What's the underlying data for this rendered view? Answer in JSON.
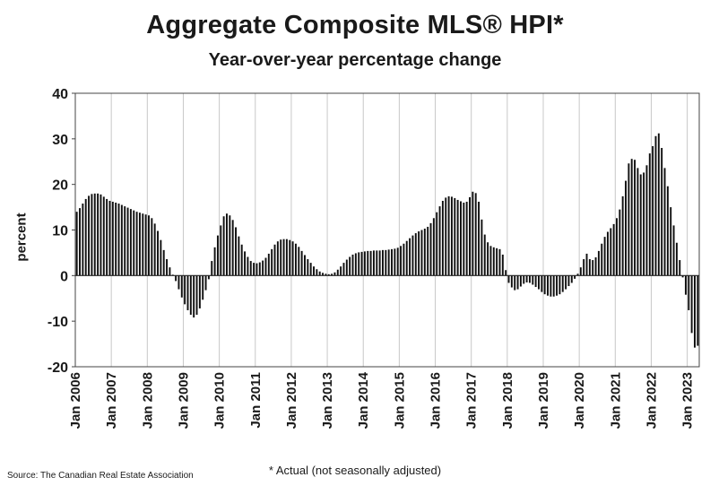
{
  "chart_data": {
    "type": "bar",
    "title": "Aggregate Composite MLS® HPI*",
    "subtitle": "Year-over-year percentage change",
    "xlabel": "",
    "ylabel": "percent",
    "ylim": [
      -20,
      40
    ],
    "yticks": [
      40,
      30,
      20,
      10,
      0,
      -10,
      -20
    ],
    "grid": "vertical",
    "x_tick_labels": [
      "Jan 2006",
      "Jan 2007",
      "Jan 2008",
      "Jan 2009",
      "Jan 2010",
      "Jan 2011",
      "Jan 2012",
      "Jan 2013",
      "Jan 2014",
      "Jan 2015",
      "Jan 2016",
      "Jan 2017",
      "Jan 2018",
      "Jan 2019",
      "Jan 2020",
      "Jan 2021",
      "Jan 2022",
      "Jan 2023"
    ],
    "start": "Jan 2006",
    "frequency": "monthly",
    "color": "#111111",
    "values": [
      14.0,
      14.8,
      15.8,
      16.8,
      17.5,
      17.9,
      18.0,
      18.0,
      17.8,
      17.3,
      16.8,
      16.4,
      16.2,
      16.0,
      15.8,
      15.5,
      15.2,
      14.9,
      14.6,
      14.3,
      14.0,
      13.8,
      13.6,
      13.4,
      13.2,
      12.6,
      11.4,
      9.8,
      7.8,
      5.6,
      3.6,
      1.8,
      0.2,
      -1.2,
      -3.0,
      -4.8,
      -6.3,
      -7.6,
      -8.6,
      -9.2,
      -8.6,
      -7.2,
      -5.3,
      -3.2,
      -0.8,
      3.2,
      6.2,
      8.8,
      11.0,
      13.0,
      13.6,
      13.2,
      12.2,
      10.6,
      8.6,
      6.8,
      5.3,
      4.1,
      3.2,
      2.8,
      2.7,
      2.9,
      3.3,
      3.9,
      4.8,
      5.8,
      6.8,
      7.5,
      7.9,
      8.0,
      8.0,
      7.8,
      7.5,
      7.0,
      6.3,
      5.4,
      4.5,
      3.6,
      2.8,
      2.0,
      1.4,
      0.9,
      0.6,
      0.4,
      0.3,
      0.4,
      0.7,
      1.3,
      2.0,
      2.8,
      3.5,
      4.1,
      4.6,
      4.9,
      5.1,
      5.2,
      5.3,
      5.4,
      5.4,
      5.5,
      5.5,
      5.5,
      5.6,
      5.6,
      5.7,
      5.8,
      5.9,
      6.1,
      6.5,
      7.0,
      7.6,
      8.2,
      8.8,
      9.3,
      9.7,
      10.0,
      10.3,
      10.7,
      11.5,
      12.6,
      13.9,
      15.2,
      16.4,
      17.1,
      17.4,
      17.3,
      17.0,
      16.6,
      16.3,
      16.0,
      16.2,
      17.2,
      18.4,
      18.1,
      16.2,
      12.3,
      9.0,
      7.3,
      6.5,
      6.2,
      6.0,
      5.8,
      4.6,
      1.2,
      -1.6,
      -2.6,
      -3.2,
      -3.0,
      -2.4,
      -1.8,
      -1.5,
      -1.6,
      -2.0,
      -2.5,
      -3.0,
      -3.6,
      -4.1,
      -4.4,
      -4.6,
      -4.6,
      -4.4,
      -4.1,
      -3.6,
      -3.0,
      -2.3,
      -1.6,
      -0.7,
      0.4,
      1.8,
      3.6,
      4.8,
      3.6,
      3.4,
      4.0,
      5.4,
      7.0,
      8.5,
      9.6,
      10.4,
      11.3,
      12.6,
      14.5,
      17.4,
      20.8,
      24.6,
      25.6,
      25.4,
      23.6,
      22.2,
      22.6,
      24.2,
      26.8,
      28.4,
      30.6,
      31.2,
      28.0,
      23.6,
      19.6,
      15.0,
      11.0,
      7.2,
      3.4,
      -0.4,
      -4.2,
      -7.6,
      -12.6,
      -15.8,
      -15.4
    ]
  },
  "footnote": "* Actual (not seasonally adjusted)",
  "source": "Source: The Canadian Real Estate Association"
}
